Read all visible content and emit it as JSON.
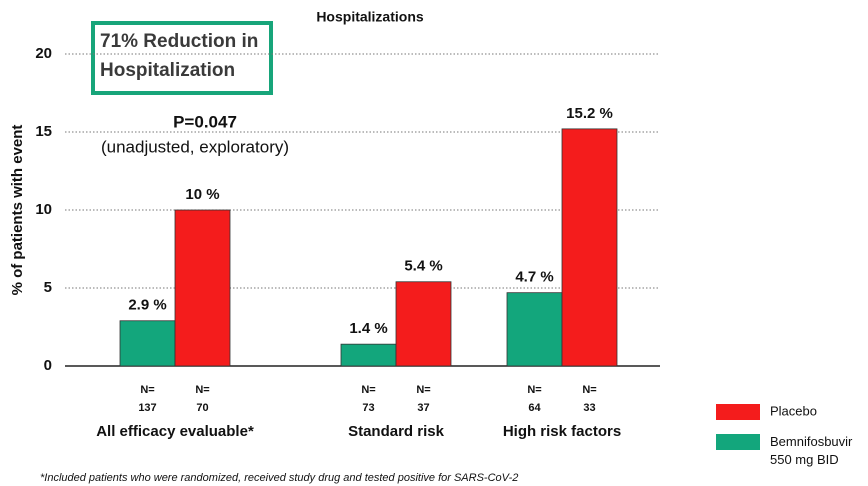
{
  "chart_data": {
    "type": "bar",
    "title": "Hospitalizations",
    "ylabel": "% of patients with event",
    "categories": [
      "All efficacy evaluable*",
      "Standard risk",
      "High risk factors"
    ],
    "n_label": "N=",
    "series": [
      {
        "name": "Bemnifosbuvir 550 mg BID",
        "color": "#13a67c",
        "label_color": "#13a07a",
        "values": [
          2.9,
          1.4,
          4.7
        ],
        "value_labels": [
          "2.9 %",
          "1.4 %",
          "4.7 %"
        ],
        "n": [
          137,
          73,
          64
        ]
      },
      {
        "name": "Placebo",
        "color": "#f41c1c",
        "label_color": "#e01f1f",
        "values": [
          10,
          5.4,
          15.2
        ],
        "value_labels": [
          "10 %",
          "5.4 %",
          "15.2 %"
        ],
        "n": [
          70,
          37,
          33
        ]
      }
    ],
    "ylim": [
      0,
      20
    ],
    "yticks": [
      0,
      5,
      10,
      15,
      20
    ],
    "grid": true,
    "annotations": {
      "box": "71% Reduction in Hospitalization",
      "p_value": "P=0.047",
      "p_note": "(unadjusted, exploratory)"
    },
    "footnote": "*Included patients who were randomized, received study drug and tested positive for SARS-CoV-2"
  }
}
